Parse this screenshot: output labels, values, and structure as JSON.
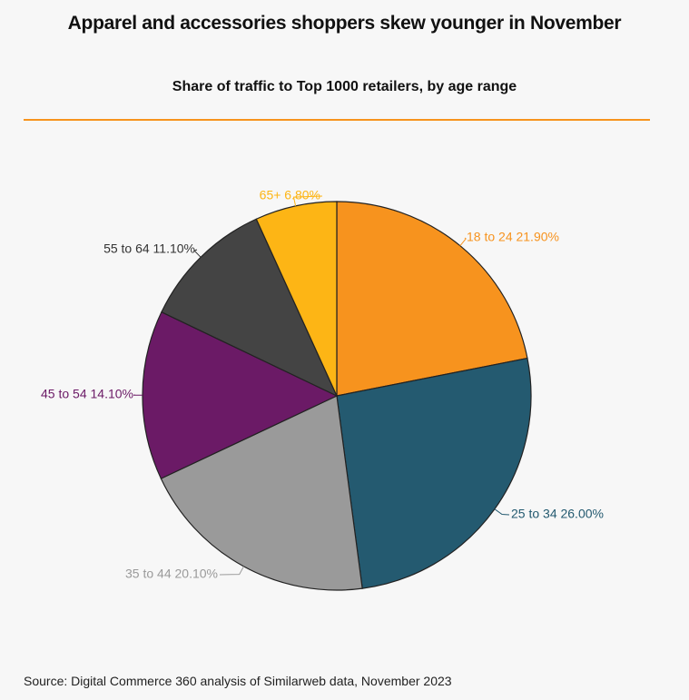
{
  "header": {
    "title": "Apparel and accessories shoppers skew younger in November",
    "subtitle": "Share of traffic to Top 1000 retailers, by age range"
  },
  "footer": {
    "source": "Source: Digital Commerce 360 analysis of Similarweb data, November 2023"
  },
  "colors": {
    "accent_rule": "#f7941d",
    "slice_stroke": "#222222"
  },
  "chart_data": {
    "type": "pie",
    "title": "Apparel and accessories shoppers skew younger in November",
    "subtitle": "Share of traffic to Top 1000 retailers, by age range",
    "start_angle_deg": 0,
    "direction": "clockwise",
    "slices": [
      {
        "label": "18 to 24",
        "value": 21.9,
        "display": "18 to 24 21.90%",
        "color": "#f7931e",
        "label_color": "#f7931e"
      },
      {
        "label": "25 to 34",
        "value": 26.0,
        "display": "25 to 34 26.00%",
        "color": "#245a70",
        "label_color": "#245a70"
      },
      {
        "label": "35 to 44",
        "value": 20.1,
        "display": "35 to 44 20.10%",
        "color": "#9a9a9a",
        "label_color": "#9a9a9a"
      },
      {
        "label": "45 to 54",
        "value": 14.1,
        "display": "45 to 54 14.10%",
        "color": "#6b1a66",
        "label_color": "#6b1a66"
      },
      {
        "label": "55 to 64",
        "value": 11.1,
        "display": "55 to 64 11.10%",
        "color": "#444444",
        "label_color": "#333333"
      },
      {
        "label": "65+",
        "value": 6.8,
        "display": "65+ 6.80%",
        "color": "#fdb515",
        "label_color": "#fdb515"
      }
    ]
  }
}
